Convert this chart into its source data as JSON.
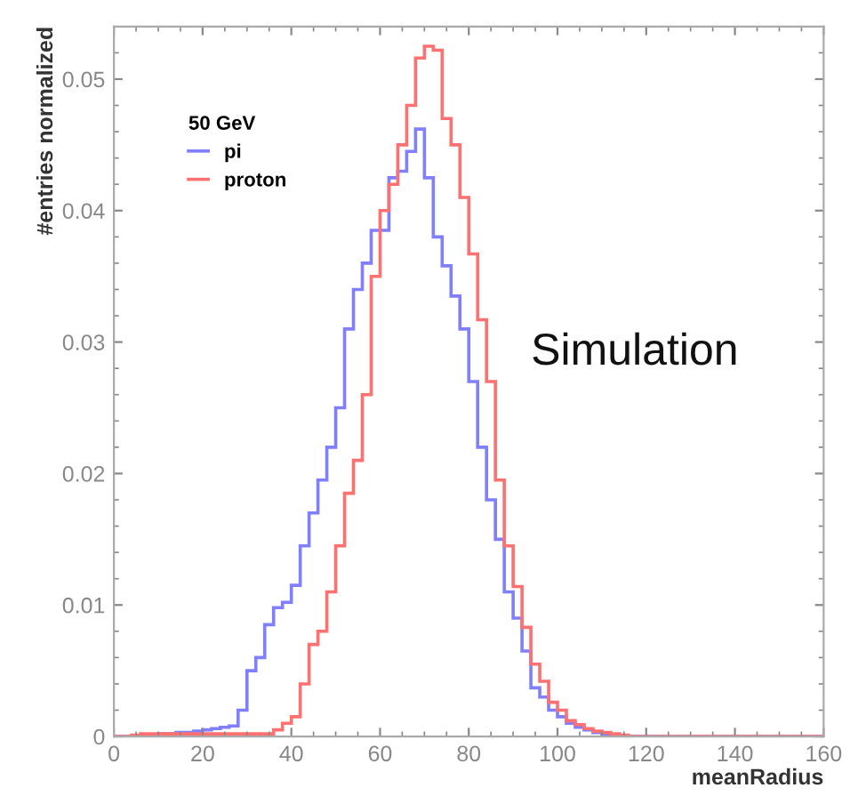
{
  "chart_data": {
    "type": "histogram",
    "xlabel": "meanRadius",
    "ylabel": "#entries normalized",
    "legend_title": "50 GeV",
    "annotations": [
      "Simulation"
    ],
    "bins": [
      0,
      2,
      4,
      6,
      8,
      10,
      12,
      14,
      16,
      18,
      20,
      22,
      24,
      26,
      28,
      30,
      32,
      34,
      36,
      38,
      40,
      42,
      44,
      46,
      48,
      50,
      52,
      54,
      56,
      58,
      60,
      62,
      64,
      66,
      68,
      70,
      72,
      74,
      76,
      78,
      80,
      82,
      84,
      86,
      88,
      90,
      92,
      94,
      96,
      98,
      100,
      102,
      104,
      106,
      108,
      110,
      112,
      114,
      116,
      118,
      120,
      122,
      124,
      126,
      128,
      130,
      132,
      134,
      136,
      138,
      140,
      142,
      144,
      146,
      148,
      150,
      152,
      154,
      156,
      158,
      160
    ],
    "series": [
      {
        "name": "pi",
        "color": "#7f7fff",
        "values": [
          0,
          0,
          0,
          0,
          0.0001,
          0.0002,
          0.0002,
          0.0003,
          0.0003,
          0.0004,
          0.0005,
          0.0006,
          0.0007,
          0.0008,
          0.002,
          0.005,
          0.006,
          0.0085,
          0.0098,
          0.0102,
          0.0115,
          0.0145,
          0.017,
          0.0195,
          0.022,
          0.025,
          0.031,
          0.034,
          0.036,
          0.0385,
          0.0385,
          0.0425,
          0.043,
          0.0445,
          0.0462,
          0.0425,
          0.038,
          0.0358,
          0.0335,
          0.031,
          0.027,
          0.022,
          0.018,
          0.015,
          0.011,
          0.009,
          0.0065,
          0.0037,
          0.003,
          0.002,
          0.0015,
          0.001,
          0.0007,
          0.0005,
          0.0003,
          0.0002,
          0.0001,
          0,
          0,
          0,
          0,
          0,
          0,
          0,
          0,
          0,
          0,
          0,
          0,
          0,
          0,
          0,
          0,
          0,
          0,
          0,
          0,
          0,
          0,
          0
        ]
      },
      {
        "name": "proton",
        "color": "#ff7070",
        "values": [
          0,
          0,
          0.0001,
          0.0002,
          0.0002,
          0.0002,
          0.0002,
          0.0002,
          0.0002,
          0.0002,
          0.0002,
          0.0002,
          0.0002,
          0.0002,
          0.0002,
          0.0002,
          0.0002,
          0.0002,
          0.0005,
          0.001,
          0.0015,
          0.004,
          0.007,
          0.008,
          0.011,
          0.0145,
          0.0185,
          0.021,
          0.026,
          0.035,
          0.04,
          0.042,
          0.045,
          0.048,
          0.0516,
          0.0525,
          0.0522,
          0.047,
          0.045,
          0.041,
          0.0367,
          0.0317,
          0.027,
          0.0195,
          0.0145,
          0.0114,
          0.0083,
          0.0055,
          0.0042,
          0.0026,
          0.002,
          0.0012,
          0.0009,
          0.0006,
          0.0004,
          0.0003,
          0.0002,
          0.0001,
          0,
          0,
          0,
          0,
          0,
          0,
          0,
          0,
          0,
          0,
          0,
          0,
          0,
          0,
          0,
          0,
          0,
          0,
          0,
          0,
          0,
          0
        ]
      }
    ],
    "xlim": [
      0,
      160
    ],
    "xticks": [
      0,
      20,
      40,
      60,
      80,
      100,
      120,
      140,
      160
    ],
    "ylim": [
      0,
      0.054
    ],
    "yticks": [
      0,
      0.01,
      0.02,
      0.03,
      0.04,
      0.05
    ],
    "grid": false,
    "legend": "top left"
  }
}
